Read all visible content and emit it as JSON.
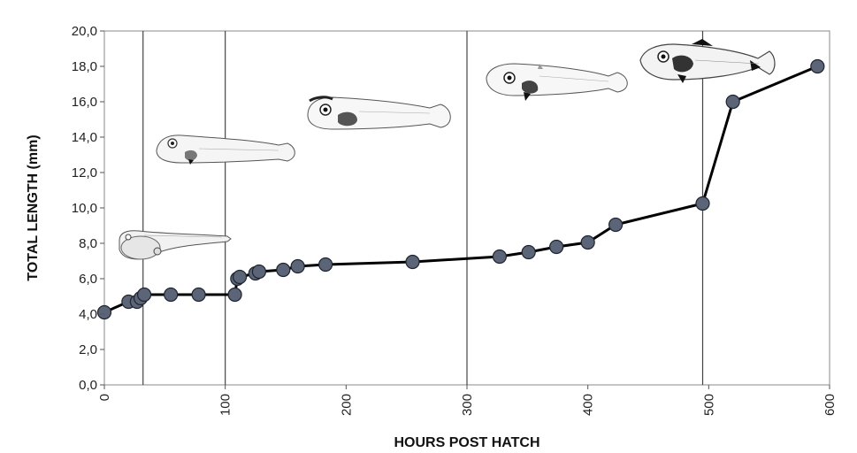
{
  "chart_data": {
    "type": "line",
    "xlabel": "HOURS POST HATCH",
    "ylabel": "TOTAL LENGTH (mm)",
    "xlim": [
      0,
      600
    ],
    "ylim": [
      0,
      20
    ],
    "x_ticks": [
      0,
      100,
      200,
      300,
      400,
      500,
      600
    ],
    "y_ticks": [
      0,
      2,
      4,
      6,
      8,
      10,
      12,
      14,
      16,
      18,
      20
    ],
    "y_tick_labels": [
      "0,0",
      "2,0",
      "4,0",
      "6,0",
      "8,0",
      "10,0",
      "12,0",
      "14,0",
      "16,0",
      "18,0",
      "20,0"
    ],
    "stage_boundaries_x": [
      32,
      100,
      300,
      495
    ],
    "grid": false,
    "series": [
      {
        "x": [
          0,
          20,
          27,
          30,
          33,
          55,
          78,
          108,
          110,
          112,
          125,
          128,
          148,
          160,
          183,
          255,
          327,
          351,
          374,
          400,
          423,
          495,
          520,
          590
        ],
        "y": [
          4.1,
          4.7,
          4.7,
          4.9,
          5.1,
          5.1,
          5.1,
          5.1,
          6.0,
          6.1,
          6.3,
          6.4,
          6.5,
          6.7,
          6.8,
          6.95,
          7.25,
          7.5,
          7.8,
          8.05,
          9.05,
          10.25,
          16.0,
          18.0
        ],
        "marker_color": "#5b6577",
        "line_color": "#000000"
      }
    ],
    "larva_illustrations": [
      {
        "icon": "larva-stage-1-icon"
      },
      {
        "icon": "larva-stage-2-icon"
      },
      {
        "icon": "larva-stage-3-icon"
      },
      {
        "icon": "larva-stage-4-icon"
      },
      {
        "icon": "larva-stage-5-icon"
      }
    ]
  }
}
